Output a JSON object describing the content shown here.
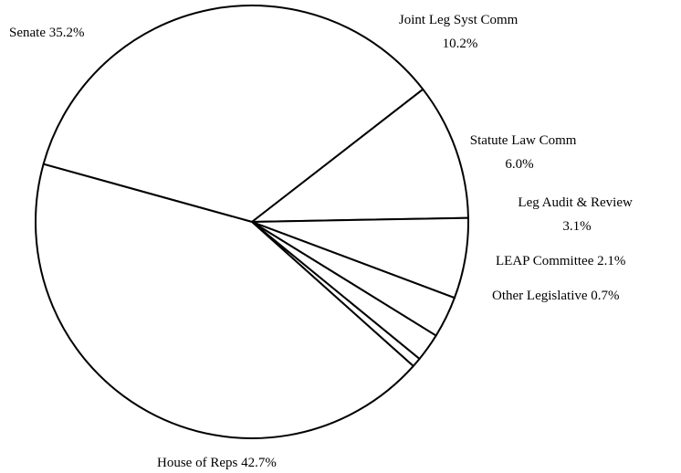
{
  "chart_data": {
    "type": "pie",
    "slices": [
      {
        "name": "Senate",
        "value": 35.2,
        "percent": "35.2%"
      },
      {
        "name": "Joint Leg Syst Comm",
        "value": 10.2,
        "percent": "10.2%"
      },
      {
        "name": "Statute Law Comm",
        "value": 6.0,
        "percent": "6.0%"
      },
      {
        "name": "Leg Audit & Review",
        "value": 3.1,
        "percent": "3.1%"
      },
      {
        "name": "LEAP Committee",
        "value": 2.1,
        "percent": "2.1%"
      },
      {
        "name": "Other Legislative",
        "value": 0.7,
        "percent": "0.7%"
      },
      {
        "name": "House of Reps",
        "value": 42.7,
        "percent": "42.7%"
      }
    ],
    "colors": {
      "fill": "#ffffff",
      "stroke": "#000000"
    }
  }
}
